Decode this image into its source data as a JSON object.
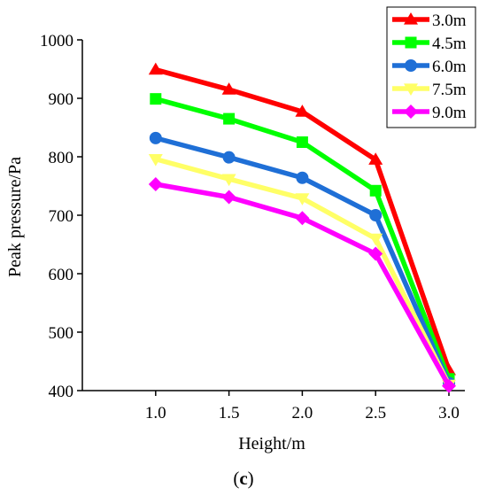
{
  "chart_data": {
    "type": "line",
    "xlabel": "Height/m",
    "ylabel": "Peak pressure/Pa",
    "panel_label": {
      "open": "(",
      "letter": "c",
      "close": ")"
    },
    "x": [
      1.0,
      1.5,
      2.0,
      2.5,
      3.0
    ],
    "x_tick_labels": [
      "1.0",
      "1.5",
      "2.0",
      "2.5",
      "3.0"
    ],
    "xlim": [
      0.5,
      3.0
    ],
    "ylim": [
      400,
      1000
    ],
    "y_ticks": [
      400,
      500,
      600,
      700,
      800,
      900,
      1000
    ],
    "y_tick_labels": [
      "400",
      "500",
      "600",
      "700",
      "800",
      "900",
      "1000"
    ],
    "grid": false,
    "legend_position": "top-right",
    "series": [
      {
        "name": "3.0m",
        "color": "#ff0000",
        "marker": "triangle-up",
        "values": [
          949,
          915,
          877,
          795,
          435
        ]
      },
      {
        "name": "4.5m",
        "color": "#00ff00",
        "marker": "square",
        "values": [
          899,
          865,
          825,
          742,
          420
        ]
      },
      {
        "name": "6.0m",
        "color": "#1f6fd6",
        "marker": "circle",
        "values": [
          832,
          799,
          764,
          700,
          413
        ]
      },
      {
        "name": "7.5m",
        "color": "#ffff66",
        "marker": "triangle-down",
        "values": [
          796,
          762,
          729,
          660,
          410
        ]
      },
      {
        "name": "9.0m",
        "color": "#ff00ff",
        "marker": "diamond",
        "values": [
          753,
          731,
          695,
          634,
          408
        ]
      }
    ]
  }
}
